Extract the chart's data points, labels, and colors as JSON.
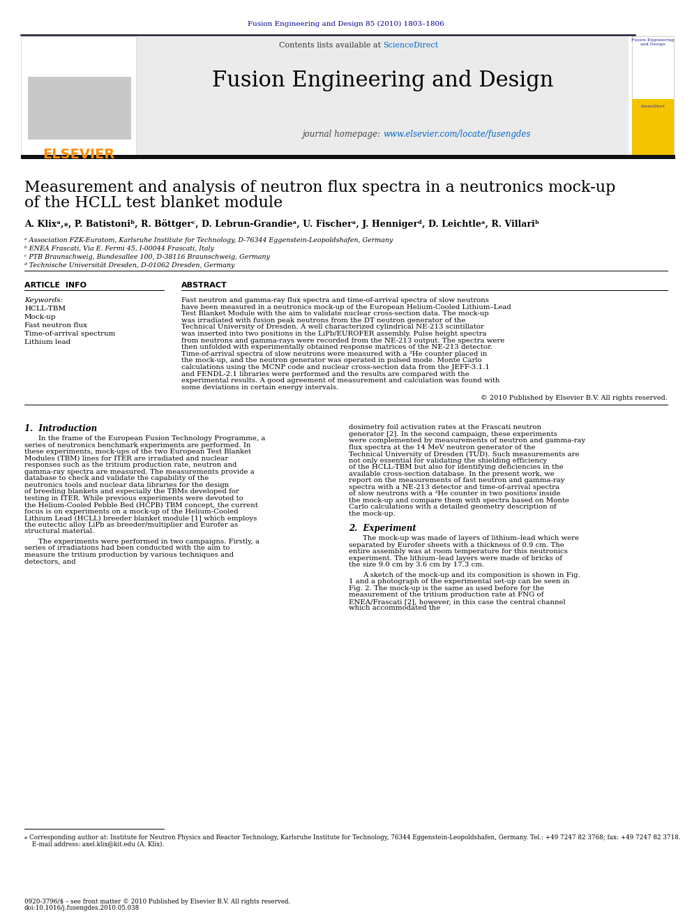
{
  "header_journal": "Fusion Engineering and Design 85 (2010) 1803–1806",
  "header_color": "#00008B",
  "sciencedirect_color": "#0066CC",
  "url_color": "#0066CC",
  "elsevier_color": "#FF8C00",
  "article_title_line1": "Measurement and analysis of neutron flux spectra in a neutronics mock-up",
  "article_title_line2": "of the HCLL test blanket module",
  "authors": "A. Klixᵃ,⁎, P. Batistoniᵇ, R. Böttgerᶜ, D. Lebrun-Grandieᵃ, U. Fischerᵃ, J. Hennigerᵈ, D. Leichtleᵃ, R. Villariᵇ",
  "affiliation_a": "ᵃ Association FZK-Euratom, Karlsruhe Institute for Technology, D-76344 Eggenstein-Leopoldshafen, Germany",
  "affiliation_b": "ᵇ ENEA Frascati, Via E. Fermi 45, I-00044 Frascati, Italy",
  "affiliation_c": "ᶜ PTB Braunschweig, Bundesallee 100, D-38116 Braunschweig, Germany",
  "affiliation_d": "ᵈ Technische Universität Dresden, D-01062 Dresden, Germany",
  "article_info_title": "ARTICLE  INFO",
  "keywords_title": "Keywords:",
  "keywords": [
    "HCLL-TBM",
    "Mock-up",
    "Fast neutron flux",
    "Time-of-arrival spectrum",
    "Lithium lead"
  ],
  "abstract_title": "ABSTRACT",
  "abstract_text": "Fast neutron and gamma-ray flux spectra and time-of-arrival spectra of slow neutrons have been measured in a neutronics mock-up of the European Helium-Cooled Lithium–Lead Test Blanket Module with the aim to validate nuclear cross-section data. The mock-up was irradiated with fusion peak neutrons from the DT neutron generator of the Technical University of Dresden. A well characterized cylindrical NE-213 scintillator was inserted into two positions in the LiPb/EUROFER assembly. Pulse height spectra from neutrons and gamma-rays were recorded from the NE-213 output. The spectra were then unfolded with experimentally obtained response matrices of the NE-213 detector. Time-of-arrival spectra of slow neutrons were measured with a ³He counter placed in the mock-up, and the neutron generator was operated in pulsed mode. Monte Carlo calculations using the MCNP code and nuclear cross-section data from the JEFF-3.1.1 and FENDL-2.1 libraries were performed and the results are compared with the experimental results. A good agreement of measurement and calculation was found with some deviations in certain energy intervals.",
  "copyright_text": "© 2010 Published by Elsevier B.V. All rights reserved.",
  "section1_title": "1.  Introduction",
  "section1_col1_para1": "In the frame of the European Fusion Technology Programme, a series of neutronics benchmark experiments are performed. In these experiments, mock-ups of the two European Test Blanket Modules (TBM) lines for ITER are irradiated and nuclear responses such as the tritium production rate, neutron and gamma-ray spectra are measured. The measurements provide a database to check and validate the capability of the neutronics tools and nuclear data libraries for the design of breeding blankets and especially the TBMs developed for testing in ITER. While previous experiments were devoted to the Helium-Cooled Pebble Bed (HCPB) TBM concept, the current focus is on experiments on a mock-up of the Helium-Cooled Lithium Lead (HCLL) breeder blanket module [1] which employs the eutectic alloy LiPb as breeder/multiplier and Eurofer as structural material.",
  "section1_col1_para2": "The experiments were performed in two campaigns. Firstly, a series of irradiations had been conducted with the aim to measure the tritium production by various techniques and detectors, and",
  "section1_col2_para1": "dosimetry foil activation rates at the Frascati neutron generator [2]. In the second campaign, these experiments were complemented by measurements of neutron and gamma-ray flux spectra at the 14 MeV neutron generator of the Technical University of Dresden (TUD). Such measurements are not only essential for validating the shielding efficiency of the HCLL-TBM but also for identifying deficiencies in the available cross-section database. In the present work, we report on the measurements of fast neutron and gamma-ray spectra with a NE-213 detector and time-of-arrival spectra of slow neutrons with a ³He counter in two positions inside the mock-up and compare them with spectra based on Monte Carlo calculations with a detailed geometry description of the mock-up.",
  "section2_title": "2.  Experiment",
  "section2_col2_para1": "The mock-up was made of layers of lithium–lead which were separated by Eurofer sheets with a thickness of 0.9 cm. The entire assembly was at room temperature for this neutronics experiment. The lithium–lead layers were made of bricks of the size 9.0 cm by 3.6 cm by 17.3 cm.",
  "section2_col2_para2": "A sketch of the mock-up and its composition is shown in Fig. 1 and a photograph of the experimental set-up can be seen in Fig. 2. The mock-up is the same as used before for the measurement of the tritium production rate at FNG of ENEA/Frascati [2], however, in this case the central channel which accommodated the",
  "footnote_text": "⁎ Corresponding author at: Institute for Neutron Physics and Reactor Technology, Karlsruhe Institute for Technology, 76344 Eggenstein-Leopoldshafen, Germany. Tel.: +49 7247 82 3768; fax: +49 7247 82 3718.\n    E-mail address: axel.klix@kit.edu (A. Klix).",
  "bottom_text": "0920-3796/$ – see front matter © 2010 Published by Elsevier B.V. All rights reserved.\ndoi:10.1016/j.fusengdes.2010.05.038",
  "bg_color": "#FFFFFF"
}
